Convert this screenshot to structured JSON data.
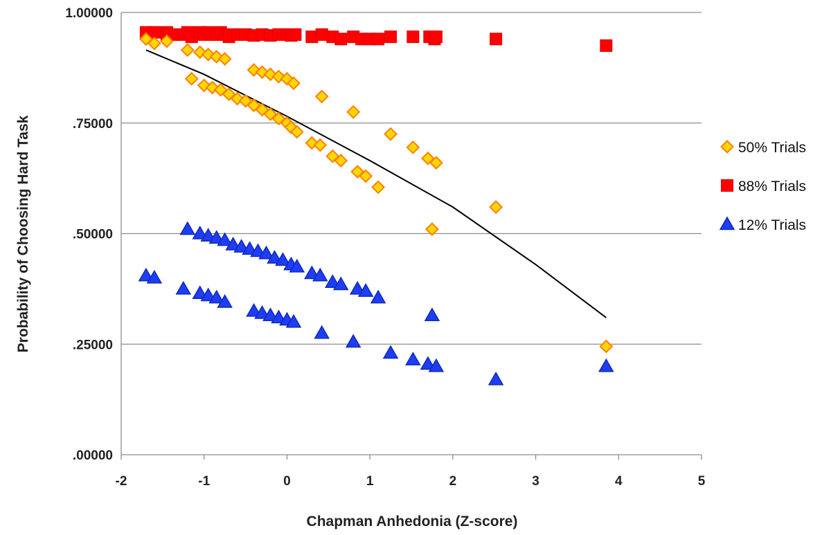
{
  "chart_data": {
    "type": "scatter",
    "title": "",
    "xlabel": "Chapman Anhedonia (Z-score)",
    "ylabel": "Probability of Choosing Hard Task",
    "xlim": [
      -2,
      5
    ],
    "ylim": [
      0,
      1
    ],
    "x_ticks": [
      -2,
      -1,
      0,
      1,
      2,
      3,
      4,
      5
    ],
    "x_tick_labels": [
      "-2",
      "-1",
      "0",
      "1",
      "2",
      "3",
      "4",
      "5"
    ],
    "y_ticks": [
      0,
      0.25,
      0.5,
      0.75,
      1
    ],
    "y_tick_labels": [
      ".00000",
      ".25000",
      ".50000",
      ".75000",
      "1.00000"
    ],
    "grid": "horizontal",
    "legend_position": "right",
    "series": [
      {
        "name": "50% Trials",
        "marker": "diamond",
        "fill": "#FFD700",
        "stroke": "#FF7F00",
        "points": [
          [
            -1.7,
            0.94
          ],
          [
            -1.6,
            0.93
          ],
          [
            -1.45,
            0.935
          ],
          [
            -1.2,
            0.915
          ],
          [
            -1.05,
            0.91
          ],
          [
            -0.95,
            0.905
          ],
          [
            -0.85,
            0.9
          ],
          [
            -0.75,
            0.895
          ],
          [
            -0.4,
            0.87
          ],
          [
            -0.3,
            0.865
          ],
          [
            -0.2,
            0.86
          ],
          [
            -0.1,
            0.855
          ],
          [
            0.0,
            0.85
          ],
          [
            0.08,
            0.84
          ],
          [
            0.42,
            0.81
          ],
          [
            0.8,
            0.775
          ],
          [
            -1.15,
            0.85
          ],
          [
            -1.0,
            0.835
          ],
          [
            -0.9,
            0.83
          ],
          [
            -0.8,
            0.825
          ],
          [
            -0.7,
            0.815
          ],
          [
            -0.6,
            0.805
          ],
          [
            -0.5,
            0.8
          ],
          [
            -0.4,
            0.79
          ],
          [
            -0.3,
            0.78
          ],
          [
            -0.2,
            0.77
          ],
          [
            -0.1,
            0.76
          ],
          [
            0.0,
            0.75
          ],
          [
            0.05,
            0.74
          ],
          [
            0.12,
            0.73
          ],
          [
            0.3,
            0.705
          ],
          [
            0.4,
            0.7
          ],
          [
            0.55,
            0.675
          ],
          [
            0.65,
            0.665
          ],
          [
            0.85,
            0.64
          ],
          [
            0.95,
            0.63
          ],
          [
            1.1,
            0.605
          ],
          [
            1.25,
            0.725
          ],
          [
            1.52,
            0.695
          ],
          [
            1.7,
            0.67
          ],
          [
            1.8,
            0.66
          ],
          [
            1.75,
            0.51
          ],
          [
            2.52,
            0.56
          ],
          [
            3.85,
            0.245
          ]
        ]
      },
      {
        "name": "88% Trials",
        "marker": "square",
        "fill": "#FF0000",
        "stroke": "#E00000",
        "points": [
          [
            -1.7,
            0.955
          ],
          [
            -1.6,
            0.955
          ],
          [
            -1.45,
            0.955
          ],
          [
            -1.45,
            0.95
          ],
          [
            -1.35,
            0.95
          ],
          [
            -1.25,
            0.95
          ],
          [
            -1.2,
            0.955
          ],
          [
            -1.15,
            0.945
          ],
          [
            -1.05,
            0.955
          ],
          [
            -1.0,
            0.95
          ],
          [
            -0.95,
            0.955
          ],
          [
            -0.9,
            0.95
          ],
          [
            -0.85,
            0.95
          ],
          [
            -0.8,
            0.955
          ],
          [
            -0.75,
            0.95
          ],
          [
            -0.7,
            0.945
          ],
          [
            -0.6,
            0.95
          ],
          [
            -0.5,
            0.95
          ],
          [
            -0.4,
            0.948
          ],
          [
            -0.3,
            0.95
          ],
          [
            -0.2,
            0.948
          ],
          [
            -0.1,
            0.95
          ],
          [
            0.0,
            0.95
          ],
          [
            0.05,
            0.948
          ],
          [
            0.1,
            0.95
          ],
          [
            0.3,
            0.945
          ],
          [
            0.42,
            0.95
          ],
          [
            0.55,
            0.945
          ],
          [
            0.65,
            0.94
          ],
          [
            0.8,
            0.945
          ],
          [
            0.9,
            0.94
          ],
          [
            1.0,
            0.94
          ],
          [
            1.1,
            0.94
          ],
          [
            1.25,
            0.945
          ],
          [
            1.52,
            0.945
          ],
          [
            1.72,
            0.945
          ],
          [
            1.78,
            0.94
          ],
          [
            1.8,
            0.945
          ],
          [
            2.52,
            0.94
          ],
          [
            3.85,
            0.925
          ]
        ]
      },
      {
        "name": "12% Trials",
        "marker": "triangle",
        "fill": "#1E3DF5",
        "stroke": "#0F2AB8",
        "points": [
          [
            -1.7,
            0.405
          ],
          [
            -1.6,
            0.4
          ],
          [
            -1.2,
            0.51
          ],
          [
            -1.05,
            0.5
          ],
          [
            -0.95,
            0.495
          ],
          [
            -0.85,
            0.49
          ],
          [
            -0.75,
            0.485
          ],
          [
            -0.65,
            0.475
          ],
          [
            -0.55,
            0.47
          ],
          [
            -0.45,
            0.465
          ],
          [
            -0.35,
            0.46
          ],
          [
            -0.25,
            0.455
          ],
          [
            -0.15,
            0.445
          ],
          [
            -0.05,
            0.44
          ],
          [
            0.05,
            0.43
          ],
          [
            0.12,
            0.425
          ],
          [
            0.3,
            0.41
          ],
          [
            0.4,
            0.405
          ],
          [
            0.55,
            0.39
          ],
          [
            0.65,
            0.385
          ],
          [
            0.85,
            0.375
          ],
          [
            0.95,
            0.37
          ],
          [
            1.1,
            0.355
          ],
          [
            -1.25,
            0.375
          ],
          [
            -1.05,
            0.365
          ],
          [
            -0.95,
            0.36
          ],
          [
            -0.85,
            0.355
          ],
          [
            -0.75,
            0.345
          ],
          [
            -0.4,
            0.325
          ],
          [
            -0.3,
            0.32
          ],
          [
            -0.2,
            0.315
          ],
          [
            -0.1,
            0.31
          ],
          [
            0.0,
            0.305
          ],
          [
            0.08,
            0.3
          ],
          [
            0.42,
            0.275
          ],
          [
            0.8,
            0.255
          ],
          [
            1.25,
            0.23
          ],
          [
            1.52,
            0.215
          ],
          [
            1.7,
            0.205
          ],
          [
            1.8,
            0.2
          ],
          [
            1.75,
            0.315
          ],
          [
            2.52,
            0.17
          ],
          [
            3.85,
            0.2
          ]
        ]
      }
    ],
    "trendline": {
      "stroke": "#000000",
      "points": [
        [
          -1.7,
          0.915
        ],
        [
          -1.0,
          0.86
        ],
        [
          0.0,
          0.765
        ],
        [
          1.0,
          0.665
        ],
        [
          2.0,
          0.56
        ],
        [
          3.0,
          0.43
        ],
        [
          3.85,
          0.31
        ]
      ]
    }
  }
}
